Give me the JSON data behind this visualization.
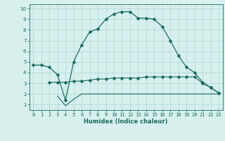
{
  "line1_x": [
    0,
    1,
    2,
    3,
    4,
    5,
    6,
    7,
    8,
    9,
    10,
    11,
    12,
    13,
    14,
    15,
    16,
    17,
    18,
    19,
    20,
    21,
    22,
    23
  ],
  "line1_y": [
    4.7,
    4.7,
    4.5,
    3.8,
    1.4,
    5.0,
    6.6,
    7.8,
    8.1,
    9.0,
    9.5,
    9.7,
    9.7,
    9.1,
    9.1,
    9.0,
    8.3,
    7.0,
    5.6,
    4.5,
    4.0,
    3.1,
    2.6,
    2.1
  ],
  "line2_x": [
    2,
    3,
    4,
    5,
    6,
    7,
    8,
    9,
    10,
    11,
    12,
    13,
    14,
    15,
    16,
    17,
    18,
    19,
    20,
    21,
    22,
    23
  ],
  "line2_y": [
    3.1,
    3.1,
    3.1,
    3.2,
    3.2,
    3.3,
    3.4,
    3.4,
    3.5,
    3.5,
    3.5,
    3.5,
    3.6,
    3.6,
    3.6,
    3.6,
    3.6,
    3.6,
    3.6,
    3.0,
    2.6,
    2.1
  ],
  "line3_x": [
    3,
    4,
    5,
    6,
    7,
    8,
    9,
    10,
    11,
    12,
    13,
    14,
    15,
    16,
    17,
    18,
    19,
    20,
    21,
    22,
    23
  ],
  "line3_y": [
    1.8,
    0.9,
    1.5,
    2.0,
    2.0,
    2.0,
    2.0,
    2.0,
    2.0,
    2.0,
    2.0,
    2.0,
    2.0,
    2.0,
    2.0,
    2.0,
    2.0,
    2.0,
    2.0,
    2.0,
    2.0
  ],
  "line_color": "#1a6b5a",
  "bg_color": "#d7f0ee",
  "grid_color": "#a8d8d0",
  "xlabel": "Humidex (Indice chaleur)",
  "xlim": [
    -0.5,
    23.5
  ],
  "ylim": [
    0.5,
    10.4
  ],
  "xticks": [
    0,
    1,
    2,
    3,
    4,
    5,
    6,
    7,
    8,
    9,
    10,
    11,
    12,
    13,
    14,
    15,
    16,
    17,
    18,
    19,
    20,
    21,
    22,
    23
  ],
  "yticks": [
    1,
    2,
    3,
    4,
    5,
    6,
    7,
    8,
    9,
    10
  ],
  "marker": "D",
  "marker_size": 2.5,
  "tick_fontsize": 5.0,
  "xlabel_fontsize": 6.0
}
